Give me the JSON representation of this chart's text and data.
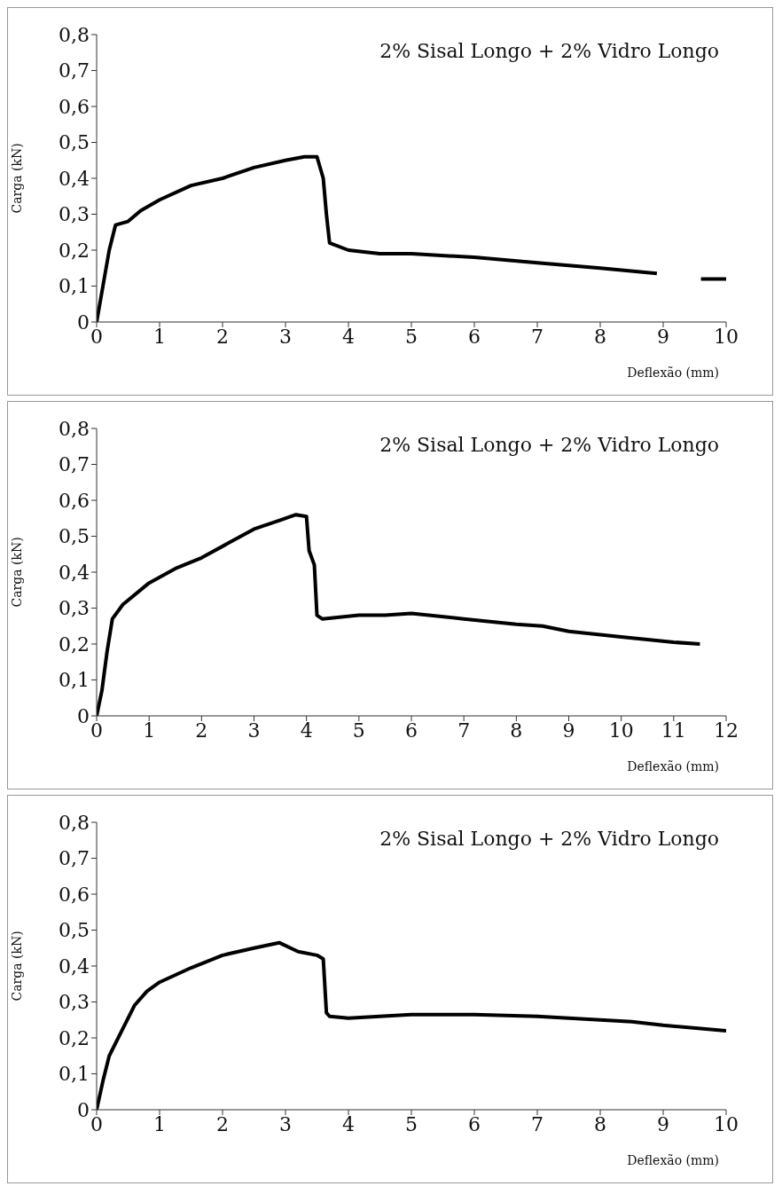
{
  "chart_data": [
    {
      "type": "line",
      "xlabel": "Deflexão (mm)",
      "ylabel": "Carga (kN)",
      "annotations": [
        "2% Sisal Longo + 2% Vidro Longo"
      ],
      "color": "#000000",
      "x": [
        0,
        0.05,
        0.1,
        0.2,
        0.3,
        0.5,
        0.7,
        1,
        1.5,
        2,
        2.5,
        3,
        3.3,
        3.5,
        3.6,
        3.65,
        3.7,
        4,
        4.5,
        5,
        6,
        7,
        8,
        8.9,
        9.2,
        9.6,
        10
      ],
      "values": [
        0,
        0.05,
        0.1,
        0.2,
        0.27,
        0.28,
        0.31,
        0.34,
        0.38,
        0.4,
        0.43,
        0.45,
        0.46,
        0.46,
        0.4,
        0.3,
        0.22,
        0.2,
        0.19,
        0.19,
        0.18,
        0.165,
        0.15,
        0.135,
        null,
        0.12,
        0.12
      ],
      "xlim": [
        0,
        10
      ],
      "xticks": [
        0,
        1,
        2,
        3,
        4,
        5,
        6,
        7,
        8,
        9,
        10
      ],
      "ylim": [
        0,
        0.8
      ],
      "yticks": [
        {
          "value": 0,
          "label": "0"
        },
        {
          "value": 0.1,
          "label": "0,1"
        },
        {
          "value": 0.2,
          "label": "0,2"
        },
        {
          "value": 0.3,
          "label": "0,3"
        },
        {
          "value": 0.4,
          "label": "0,4"
        },
        {
          "value": 0.5,
          "label": "0,5"
        },
        {
          "value": 0.6,
          "label": "0,6"
        },
        {
          "value": 0.7,
          "label": "0,7"
        },
        {
          "value": 0.8,
          "label": "0,8"
        }
      ]
    },
    {
      "type": "line",
      "xlabel": "Deflexão (mm)",
      "ylabel": "Carga (kN)",
      "annotations": [
        "2% Sisal Longo + 2% Vidro Longo"
      ],
      "color": "#000000",
      "x": [
        0,
        0.1,
        0.2,
        0.3,
        0.5,
        1,
        1.5,
        2,
        2.5,
        3,
        3.5,
        3.8,
        4,
        4.05,
        4.15,
        4.2,
        4.3,
        5,
        5.5,
        6,
        7,
        8,
        8.5,
        9,
        10,
        11,
        11.5
      ],
      "values": [
        0,
        0.07,
        0.18,
        0.27,
        0.31,
        0.37,
        0.41,
        0.44,
        0.48,
        0.52,
        0.545,
        0.56,
        0.555,
        0.46,
        0.42,
        0.28,
        0.27,
        0.28,
        0.28,
        0.285,
        0.27,
        0.255,
        0.25,
        0.235,
        0.22,
        0.205,
        0.2
      ],
      "xlim": [
        0,
        12
      ],
      "xticks": [
        0,
        1,
        2,
        3,
        4,
        5,
        6,
        7,
        8,
        9,
        10,
        11,
        12
      ],
      "ylim": [
        0,
        0.8
      ],
      "yticks": [
        {
          "value": 0,
          "label": "0"
        },
        {
          "value": 0.1,
          "label": "0,1"
        },
        {
          "value": 0.2,
          "label": "0,2"
        },
        {
          "value": 0.3,
          "label": "0,3"
        },
        {
          "value": 0.4,
          "label": "0,4"
        },
        {
          "value": 0.5,
          "label": "0,5"
        },
        {
          "value": 0.6,
          "label": "0,6"
        },
        {
          "value": 0.7,
          "label": "0,7"
        },
        {
          "value": 0.8,
          "label": "0,8"
        }
      ]
    },
    {
      "type": "line",
      "xlabel": "Deflexão (mm)",
      "ylabel": "Carga (kN)",
      "annotations": [
        "2% Sisal Longo + 2% Vidro Longo"
      ],
      "color": "#000000",
      "x": [
        0,
        0.1,
        0.2,
        0.4,
        0.6,
        0.8,
        1,
        1.5,
        2,
        2.5,
        2.9,
        3.2,
        3.5,
        3.6,
        3.65,
        3.7,
        4,
        5,
        6,
        7,
        8,
        8.5,
        9,
        10
      ],
      "values": [
        0,
        0.08,
        0.15,
        0.22,
        0.29,
        0.33,
        0.355,
        0.395,
        0.43,
        0.45,
        0.465,
        0.44,
        0.43,
        0.42,
        0.27,
        0.26,
        0.255,
        0.265,
        0.265,
        0.26,
        0.25,
        0.245,
        0.235,
        0.22
      ],
      "xlim": [
        0,
        10
      ],
      "xticks": [
        0,
        1,
        2,
        3,
        4,
        5,
        6,
        7,
        8,
        9,
        10
      ],
      "ylim": [
        0,
        0.8
      ],
      "yticks": [
        {
          "value": 0,
          "label": "0"
        },
        {
          "value": 0.1,
          "label": "0,1"
        },
        {
          "value": 0.2,
          "label": "0,2"
        },
        {
          "value": 0.3,
          "label": "0,3"
        },
        {
          "value": 0.4,
          "label": "0,4"
        },
        {
          "value": 0.5,
          "label": "0,5"
        },
        {
          "value": 0.6,
          "label": "0,6"
        },
        {
          "value": 0.7,
          "label": "0,7"
        },
        {
          "value": 0.8,
          "label": "0,8"
        }
      ]
    }
  ]
}
